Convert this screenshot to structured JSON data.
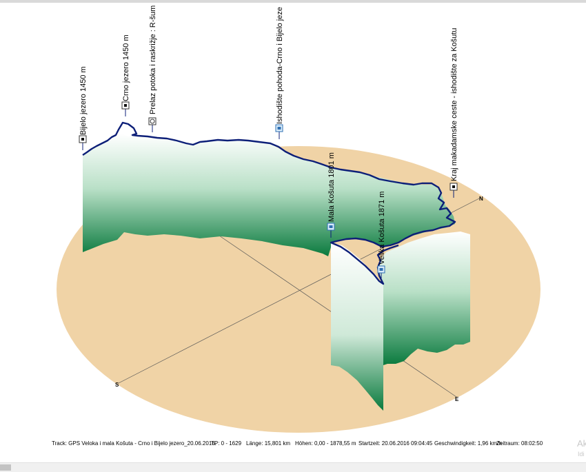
{
  "colors": {
    "ground": "#f0d3a6",
    "track": "#0d1f78",
    "curtain_top": "#ffffff",
    "curtain_bottom": "#0a7a3e"
  },
  "compass": {
    "n": "N",
    "s": "S",
    "e": "E"
  },
  "waypoints": [
    {
      "label": "Bijelo jezero 1450 m",
      "icon": "waypoint-square-icon"
    },
    {
      "label": "Crno jezero 1450 m",
      "icon": "waypoint-square-icon"
    },
    {
      "label": "Prelaz potoka i raskrižje : R-šum",
      "icon": "waypoint-crossing-icon"
    },
    {
      "label": "Ishodište pohoda-Crno i Bijelo jeze",
      "icon": "waypoint-parking-icon"
    },
    {
      "label": "Mala Košuta 1801 m",
      "icon": "waypoint-summit-icon"
    },
    {
      "label": "Velika Košuta 1871 m",
      "icon": "waypoint-summit-icon"
    },
    {
      "label": "Kraj makadamske ceste - ishodište za Košutu",
      "icon": "waypoint-square-icon"
    }
  ],
  "statusbar": {
    "track": "Track: GPS Veloka i mala Košuta - Crno i Bijelo jezero_20.06.2016.",
    "tp": "TP: 0 - 1629",
    "length": "Länge: 15,801 km",
    "heights": "Höhen: 0,00 - 1878,55 m",
    "start": "Startzeit: 20.06.2016 09:04:45",
    "speed": "Geschwindigkeit: 1,96 km/h",
    "duration": "Zeitraum: 08:02:50"
  },
  "watermark": {
    "line1": "Ak",
    "line2": "Idi"
  }
}
